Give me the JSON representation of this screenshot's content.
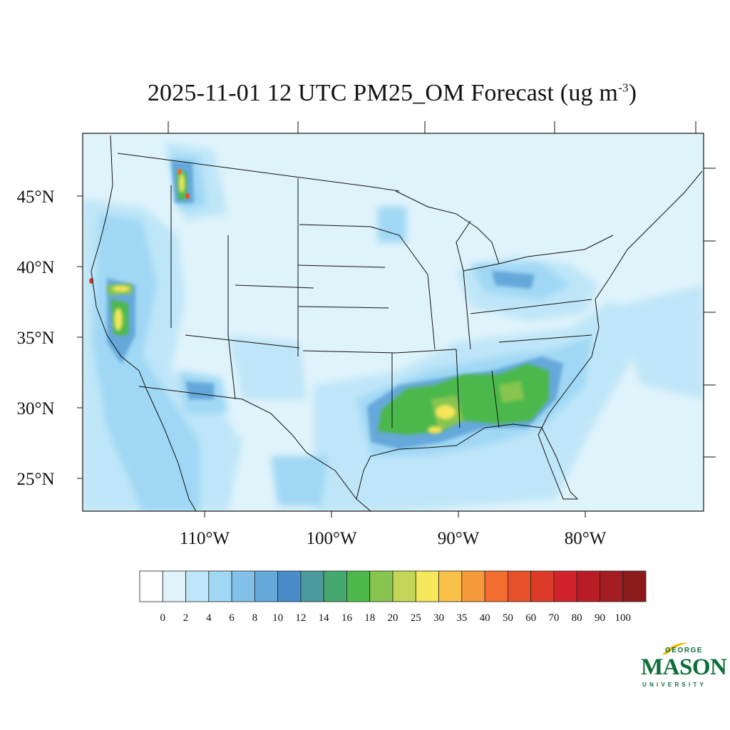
{
  "title": {
    "main": "2025-11-01 12 UTC PM25_OM Forecast (ug m",
    "exponent": "-3",
    "close": ")"
  },
  "map": {
    "region": "Contiguous United States",
    "lat_labels": [
      "45°N",
      "40°N",
      "35°N",
      "30°N",
      "25°N"
    ],
    "lon_labels": [
      "110°W",
      "100°W",
      "90°W",
      "80°W"
    ],
    "background_color": "#dff3fb"
  },
  "colorbar": {
    "levels": [
      "0",
      "2",
      "4",
      "6",
      "8",
      "10",
      "12",
      "14",
      "16",
      "18",
      "20",
      "25",
      "30",
      "35",
      "40",
      "50",
      "60",
      "70",
      "80",
      "90",
      "100"
    ],
    "colors": [
      "#ffffff",
      "#dff3fb",
      "#bfe6f8",
      "#9fd7f4",
      "#82c1e8",
      "#65a8da",
      "#4a8cc9",
      "#4a9a9e",
      "#45a86f",
      "#4cb84b",
      "#87c54f",
      "#c4d657",
      "#f5e65a",
      "#f8c24a",
      "#f79a3c",
      "#f26d2e",
      "#e8502b",
      "#dc3b2a",
      "#d2222b",
      "#b81c24",
      "#a21c22",
      "#8c1a1a"
    ]
  },
  "logo": {
    "line1": "GEORGE",
    "line2": "MASON",
    "line3": "UNIVERSITY",
    "color": "#0d6e3a",
    "accent": "#f2b705"
  }
}
